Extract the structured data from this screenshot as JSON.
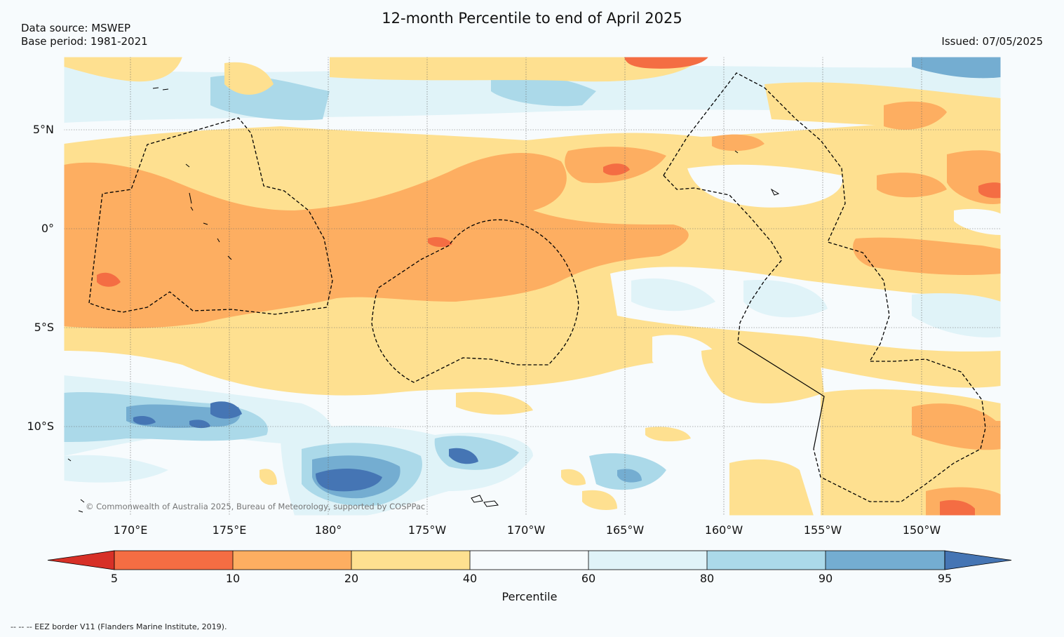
{
  "header": {
    "title": "12-month Percentile to end of April 2025",
    "data_source": "Data source: MSWEP",
    "base_period": "Base period: 1981-2021",
    "issued": "Issued: 07/05/2025"
  },
  "map": {
    "copyright": "© Commonwealth of Australia 2025, Bureau of Meteorology, supported by COSPPac",
    "lat_labels": [
      "5°N",
      "0°",
      "5°S",
      "10°S"
    ],
    "lon_labels": [
      "170°E",
      "175°E",
      "180°",
      "175°W",
      "170°W",
      "165°W",
      "160°W",
      "155°W",
      "150°W"
    ],
    "footnote": "--  --  -- EEZ border V11 (Flanders Marine Institute, 2019)."
  },
  "colorbar": {
    "label": "Percentile",
    "ticks": [
      "5",
      "10",
      "20",
      "40",
      "60",
      "80",
      "90",
      "95"
    ],
    "colors": {
      "below_5": "#d73027",
      "5_10": "#f46d43",
      "10_20": "#fdae61",
      "20_40": "#fee090",
      "40_60": "#f7fbfd",
      "60_80": "#e0f3f8",
      "80_90": "#abd9e9",
      "90_95": "#74add1",
      "above_95": "#4575b4"
    }
  }
}
